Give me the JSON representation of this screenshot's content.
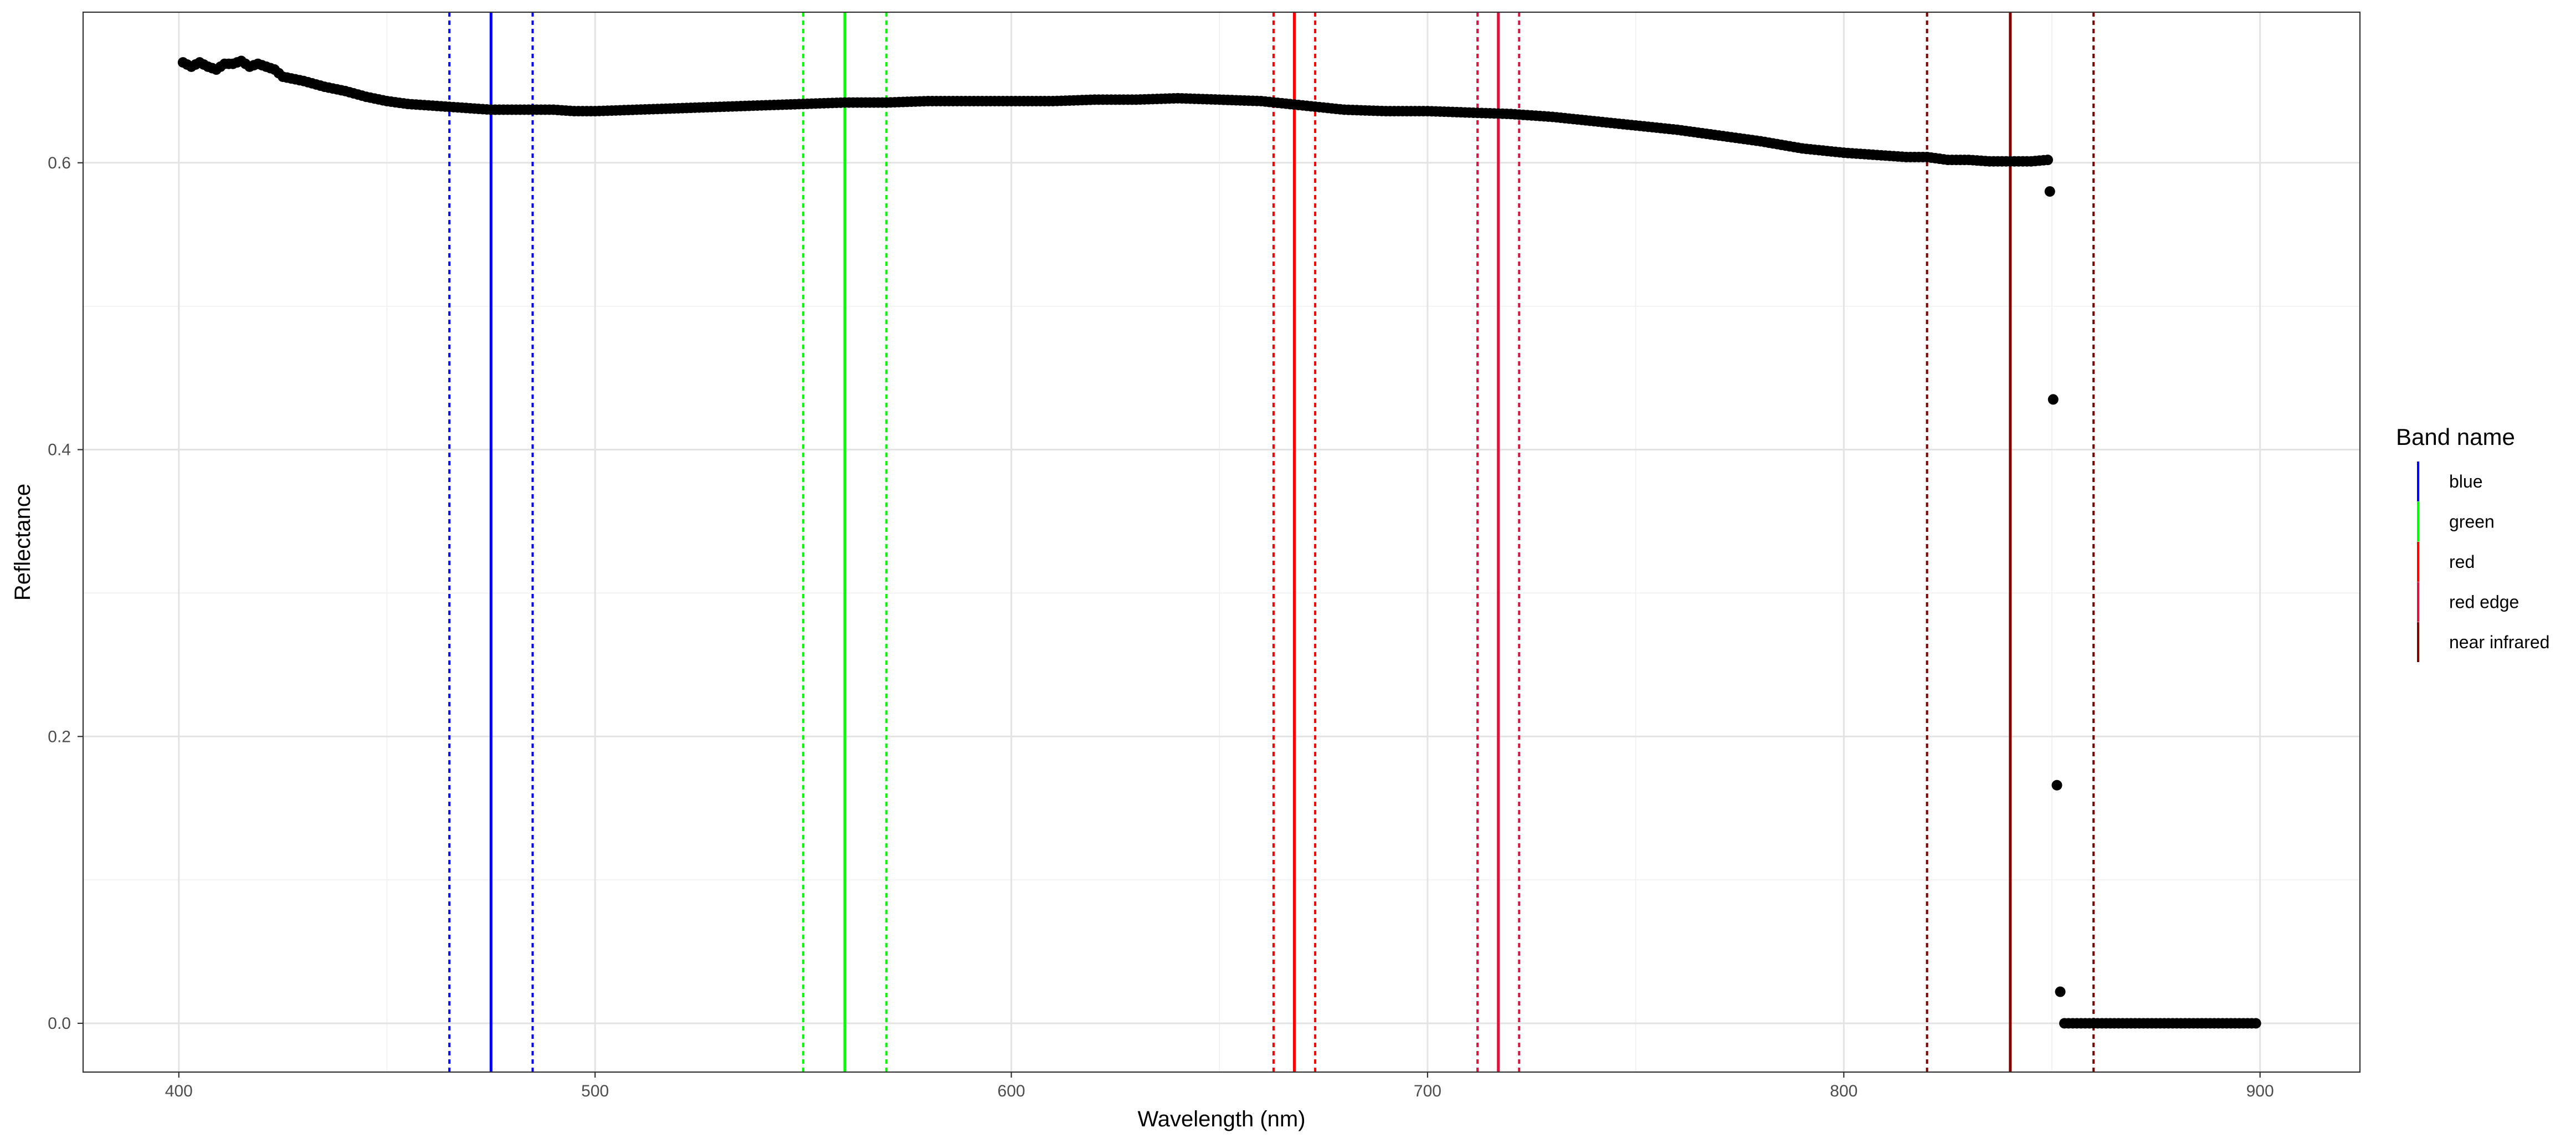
{
  "chart_data": {
    "type": "scatter",
    "title": "",
    "xlabel": "Wavelength (nm)",
    "ylabel": "Reflectance",
    "xlim": [
      377,
      924
    ],
    "ylim": [
      -0.034,
      0.705
    ],
    "x_ticks": [
      400,
      500,
      600,
      700,
      800,
      900
    ],
    "y_ticks": [
      0.0,
      0.2,
      0.4,
      0.6
    ],
    "x_tick_labels": [
      "400",
      "500",
      "600",
      "700",
      "800",
      "900"
    ],
    "y_tick_labels": [
      "0.0",
      "0.2",
      "0.4",
      "0.6"
    ],
    "grid": true,
    "legend_position": "right",
    "legend_title": "Band name",
    "spectrum_control_points": [
      [
        401,
        0.67
      ],
      [
        403,
        0.667
      ],
      [
        405,
        0.67
      ],
      [
        407,
        0.667
      ],
      [
        409,
        0.665
      ],
      [
        411,
        0.669
      ],
      [
        413,
        0.669
      ],
      [
        415,
        0.671
      ],
      [
        417,
        0.667
      ],
      [
        419,
        0.669
      ],
      [
        421,
        0.667
      ],
      [
        423,
        0.665
      ],
      [
        425,
        0.66
      ],
      [
        430,
        0.657
      ],
      [
        435,
        0.653
      ],
      [
        440,
        0.65
      ],
      [
        445,
        0.646
      ],
      [
        450,
        0.643
      ],
      [
        455,
        0.641
      ],
      [
        460,
        0.64
      ],
      [
        465,
        0.639
      ],
      [
        470,
        0.638
      ],
      [
        475,
        0.637
      ],
      [
        480,
        0.637
      ],
      [
        485,
        0.637
      ],
      [
        490,
        0.637
      ],
      [
        495,
        0.636
      ],
      [
        500,
        0.636
      ],
      [
        510,
        0.637
      ],
      [
        520,
        0.638
      ],
      [
        530,
        0.639
      ],
      [
        540,
        0.64
      ],
      [
        550,
        0.641
      ],
      [
        560,
        0.642
      ],
      [
        570,
        0.642
      ],
      [
        580,
        0.643
      ],
      [
        590,
        0.643
      ],
      [
        600,
        0.643
      ],
      [
        610,
        0.643
      ],
      [
        620,
        0.644
      ],
      [
        630,
        0.644
      ],
      [
        640,
        0.645
      ],
      [
        650,
        0.644
      ],
      [
        660,
        0.643
      ],
      [
        670,
        0.64
      ],
      [
        680,
        0.637
      ],
      [
        690,
        0.636
      ],
      [
        700,
        0.636
      ],
      [
        710,
        0.635
      ],
      [
        720,
        0.634
      ],
      [
        730,
        0.632
      ],
      [
        740,
        0.629
      ],
      [
        750,
        0.626
      ],
      [
        760,
        0.623
      ],
      [
        770,
        0.619
      ],
      [
        780,
        0.615
      ],
      [
        790,
        0.61
      ],
      [
        800,
        0.607
      ],
      [
        810,
        0.605
      ],
      [
        815,
        0.604
      ],
      [
        820,
        0.604
      ],
      [
        825,
        0.602
      ],
      [
        830,
        0.602
      ],
      [
        835,
        0.601
      ],
      [
        840,
        0.601
      ],
      [
        845,
        0.601
      ],
      [
        849,
        0.602
      ]
    ],
    "spectrum_dropoff_points": [
      [
        849.5,
        0.58
      ],
      [
        850.3,
        0.435
      ],
      [
        851.2,
        0.166
      ],
      [
        852,
        0.022
      ]
    ],
    "spectrum_zero_range": [
      853,
      899
    ],
    "bands": [
      {
        "name": "blue",
        "color": "#0000ff",
        "center": 475,
        "lower": 465,
        "upper": 485
      },
      {
        "name": "green",
        "color": "#00ff00",
        "center": 560,
        "lower": 550,
        "upper": 570
      },
      {
        "name": "red",
        "color": "#ff0000",
        "center": 668,
        "lower": 663,
        "upper": 673
      },
      {
        "name": "red edge",
        "color": "#dc143c",
        "center": 717,
        "lower": 712,
        "upper": 722
      },
      {
        "name": "near infrared",
        "color": "#800000",
        "center": 840,
        "lower": 820,
        "upper": 860
      }
    ]
  }
}
